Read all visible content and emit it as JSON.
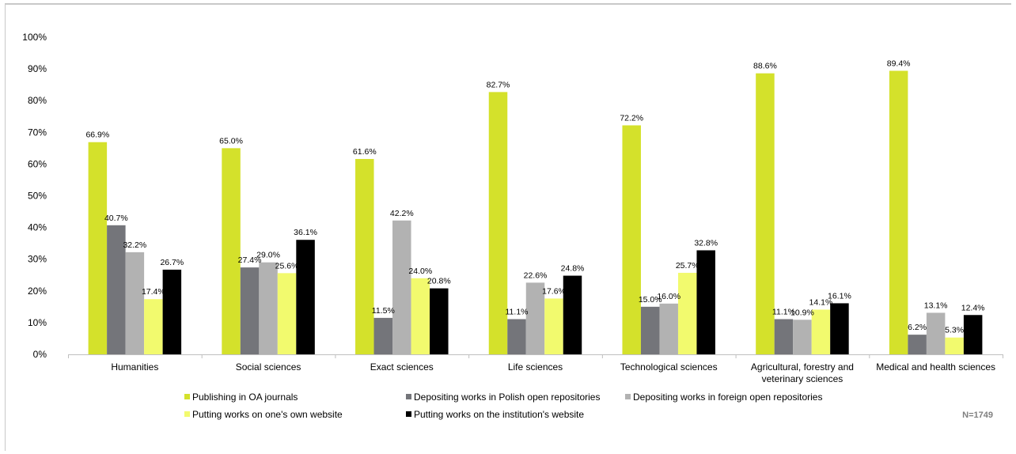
{
  "chart_data": {
    "type": "bar",
    "categories": [
      [
        "Humanities"
      ],
      [
        "Social sciences"
      ],
      [
        "Exact sciences"
      ],
      [
        "Life sciences"
      ],
      [
        "Technological sciences"
      ],
      [
        "Agricultural, forestry and",
        "veterinary sciences"
      ],
      [
        "Medical and health sciences"
      ]
    ],
    "series": [
      {
        "name": "Publishing in OA journals",
        "color": "#d4e12b",
        "values": [
          66.9,
          65.0,
          61.6,
          82.7,
          72.2,
          88.6,
          89.4
        ]
      },
      {
        "name": "Depositing works in Polish open repositories",
        "color": "#74757a",
        "values": [
          40.7,
          27.4,
          11.5,
          11.1,
          15.0,
          11.1,
          6.2
        ]
      },
      {
        "name": "Depositing works in foreign open repositories",
        "color": "#b2b2b2",
        "values": [
          32.2,
          29.0,
          42.2,
          22.6,
          16.0,
          10.9,
          13.1
        ]
      },
      {
        "name": "Putting works on one's own website",
        "color": "#f2fa6e",
        "values": [
          17.4,
          25.6,
          24.0,
          17.6,
          25.7,
          14.1,
          5.3
        ]
      },
      {
        "name": "Putting works on the institution's website",
        "color": "#000000",
        "values": [
          26.7,
          36.1,
          20.8,
          24.8,
          32.8,
          16.1,
          12.4
        ]
      }
    ],
    "value_labels": [
      [
        "66.9%",
        "40.7%",
        "32.2%",
        "17.4%",
        "26.7%"
      ],
      [
        "65.0%",
        "27.4%",
        "29.0%",
        "25.6%",
        "36.1%"
      ],
      [
        "61.6%",
        "11.5%",
        "42.2%",
        "24.0%",
        "20.8%"
      ],
      [
        "82.7%",
        "11.1%",
        "22.6%",
        "17.6%",
        "24.8%"
      ],
      [
        "72.2%",
        "15.0%",
        "16.0%",
        "25.7%",
        "32.8%"
      ],
      [
        "88.6%",
        "11.1%",
        "10.9%",
        "14.1%",
        "16.1%"
      ],
      [
        "89.4%",
        "6.2%",
        "13.1%",
        "5.3%",
        "12.4%"
      ]
    ],
    "y_ticks": [
      "0%",
      "10%",
      "20%",
      "30%",
      "40%",
      "50%",
      "60%",
      "70%",
      "80%",
      "90%",
      "100%"
    ],
    "ylim": [
      0,
      100
    ],
    "grid": false,
    "legend_position": "bottom",
    "note": "N=1749"
  }
}
